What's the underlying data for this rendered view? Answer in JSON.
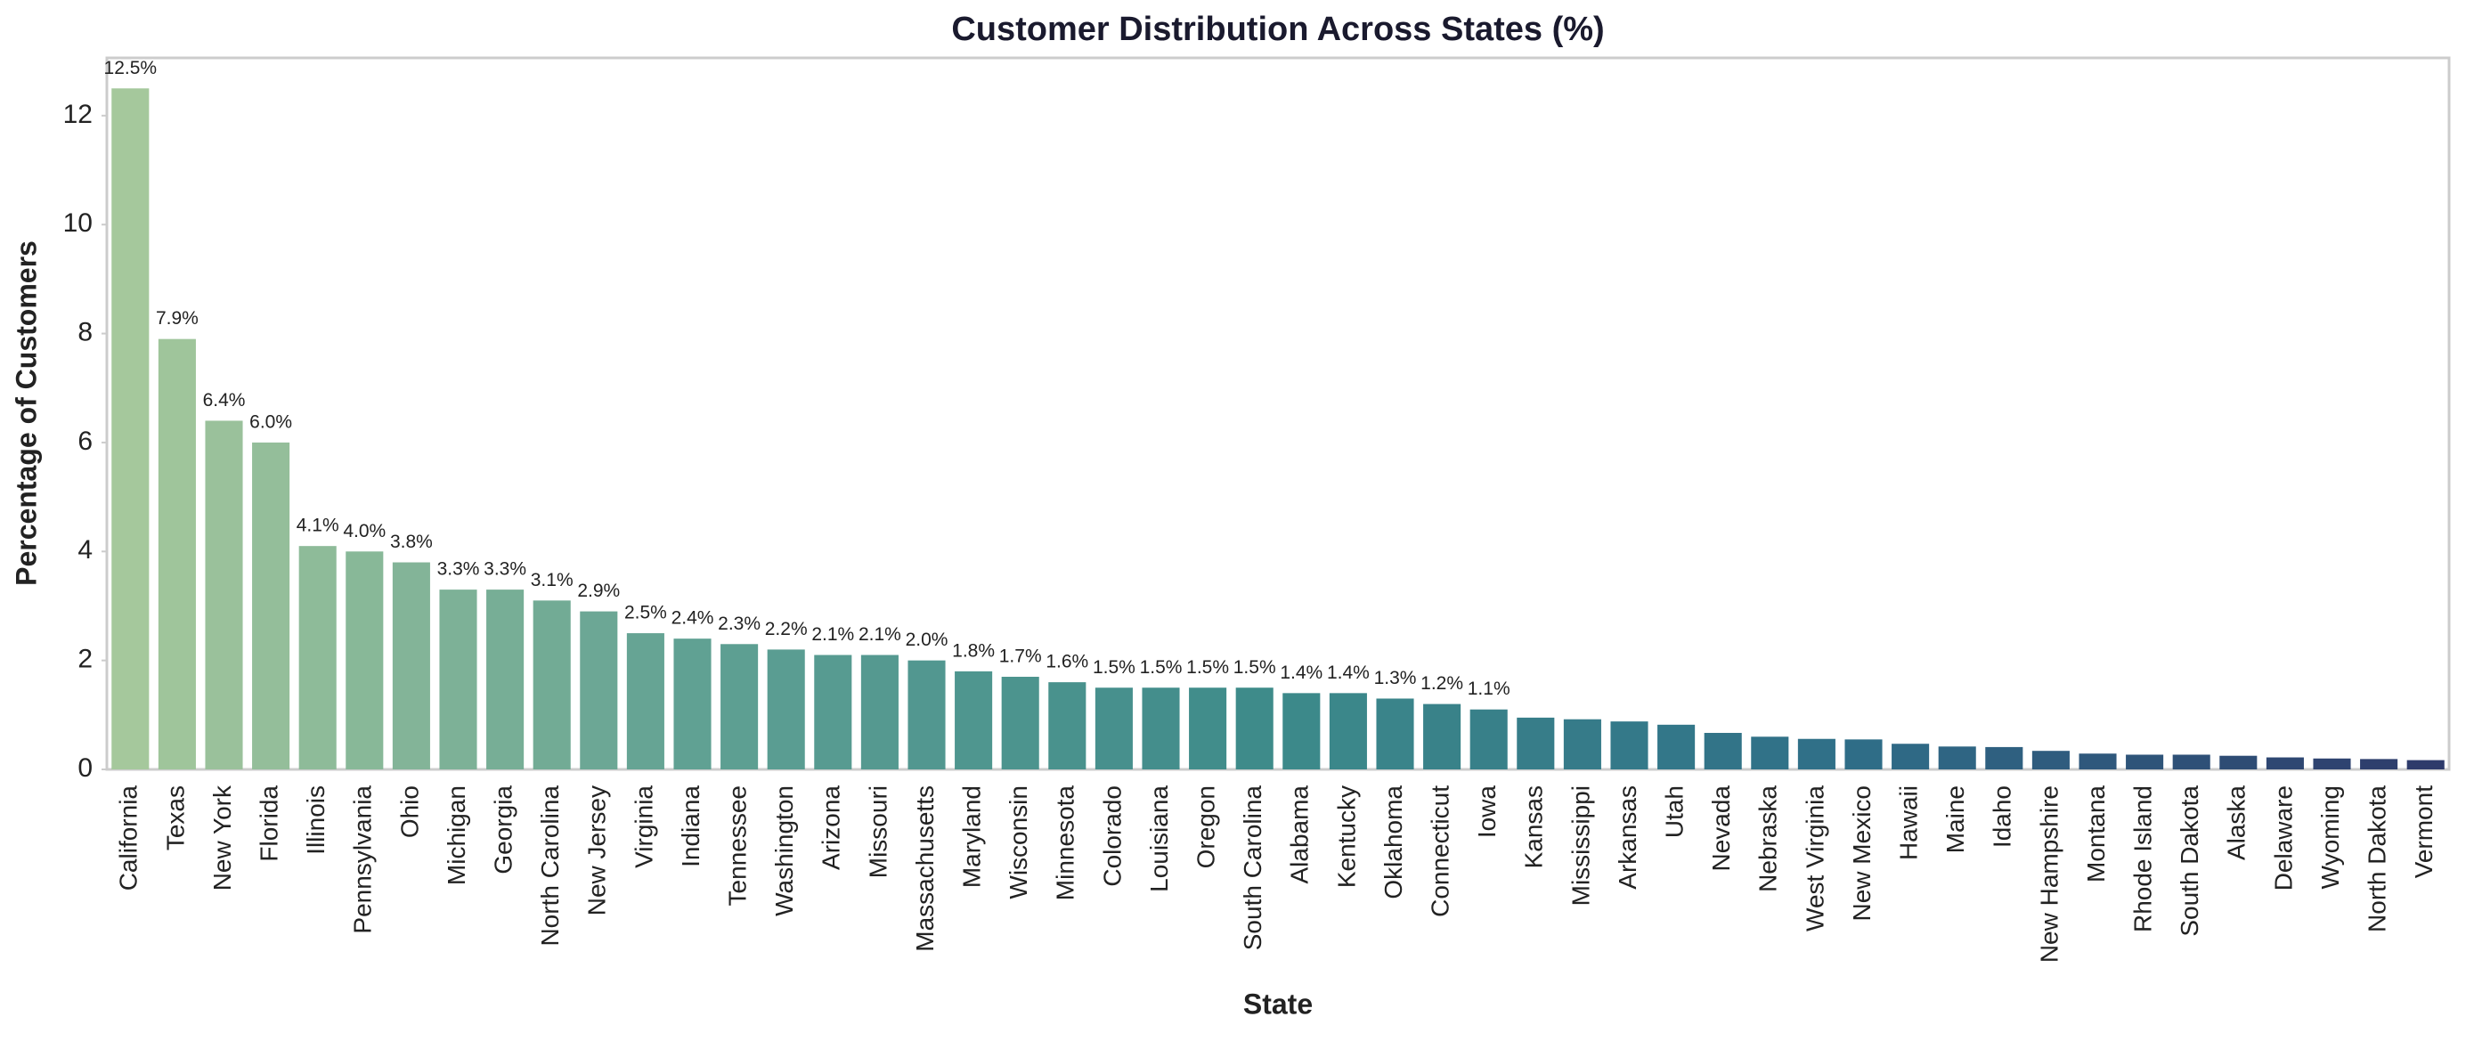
{
  "chart_data": {
    "type": "bar",
    "title": "Customer Distribution Across States (%)",
    "x_label": "State",
    "y_label": "Percentage of Customers",
    "categories": [
      "California",
      "Texas",
      "New York",
      "Florida",
      "Illinois",
      "Pennsylvania",
      "Ohio",
      "Michigan",
      "Georgia",
      "North Carolina",
      "New Jersey",
      "Virginia",
      "Indiana",
      "Tennessee",
      "Washington",
      "Arizona",
      "Missouri",
      "Massachusetts",
      "Maryland",
      "Wisconsin",
      "Minnesota",
      "Colorado",
      "Louisiana",
      "Oregon",
      "South Carolina",
      "Alabama",
      "Kentucky",
      "Oklahoma",
      "Connecticut",
      "Iowa",
      "Kansas",
      "Mississippi",
      "Arkansas",
      "Utah",
      "Nevada",
      "Nebraska",
      "West Virginia",
      "New Mexico",
      "Hawaii",
      "Maine",
      "Idaho",
      "New Hampshire",
      "Montana",
      "Rhode Island",
      "South Dakota",
      "Alaska",
      "Delaware",
      "Wyoming",
      "North Dakota",
      "Vermont"
    ],
    "values": [
      12.5,
      7.9,
      6.4,
      6.0,
      4.1,
      4.0,
      3.8,
      3.3,
      3.3,
      3.1,
      2.9,
      2.5,
      2.4,
      2.3,
      2.2,
      2.1,
      2.1,
      2.0,
      1.8,
      1.7,
      1.6,
      1.5,
      1.5,
      1.5,
      1.5,
      1.4,
      1.4,
      1.3,
      1.2,
      1.1,
      0.95,
      0.92,
      0.88,
      0.82,
      0.67,
      0.6,
      0.56,
      0.55,
      0.47,
      0.42,
      0.41,
      0.34,
      0.29,
      0.27,
      0.27,
      0.25,
      0.22,
      0.2,
      0.19,
      0.17
    ],
    "value_labels": [
      "12.5%",
      "7.9%",
      "6.4%",
      "6.0%",
      "4.1%",
      "4.0%",
      "3.8%",
      "3.3%",
      "3.3%",
      "3.1%",
      "2.9%",
      "2.5%",
      "2.4%",
      "2.3%",
      "2.2%",
      "2.1%",
      "2.1%",
      "2.0%",
      "1.8%",
      "1.7%",
      "1.6%",
      "1.5%",
      "1.5%",
      "1.5%",
      "1.5%",
      "1.4%",
      "1.4%",
      "1.3%",
      "1.2%",
      "1.1%",
      null,
      null,
      null,
      null,
      null,
      null,
      null,
      null,
      null,
      null,
      null,
      null,
      null,
      null,
      null,
      null,
      null,
      null,
      null,
      null
    ],
    "palette": [
      "#a5c89c",
      "#5fa093",
      "#3d8a8a",
      "#2f6e88",
      "#2e3b6b"
    ],
    "ylim": [
      0,
      13.06
    ],
    "yticks": [
      0,
      2,
      4,
      6,
      8,
      10,
      12
    ],
    "grid": false
  }
}
